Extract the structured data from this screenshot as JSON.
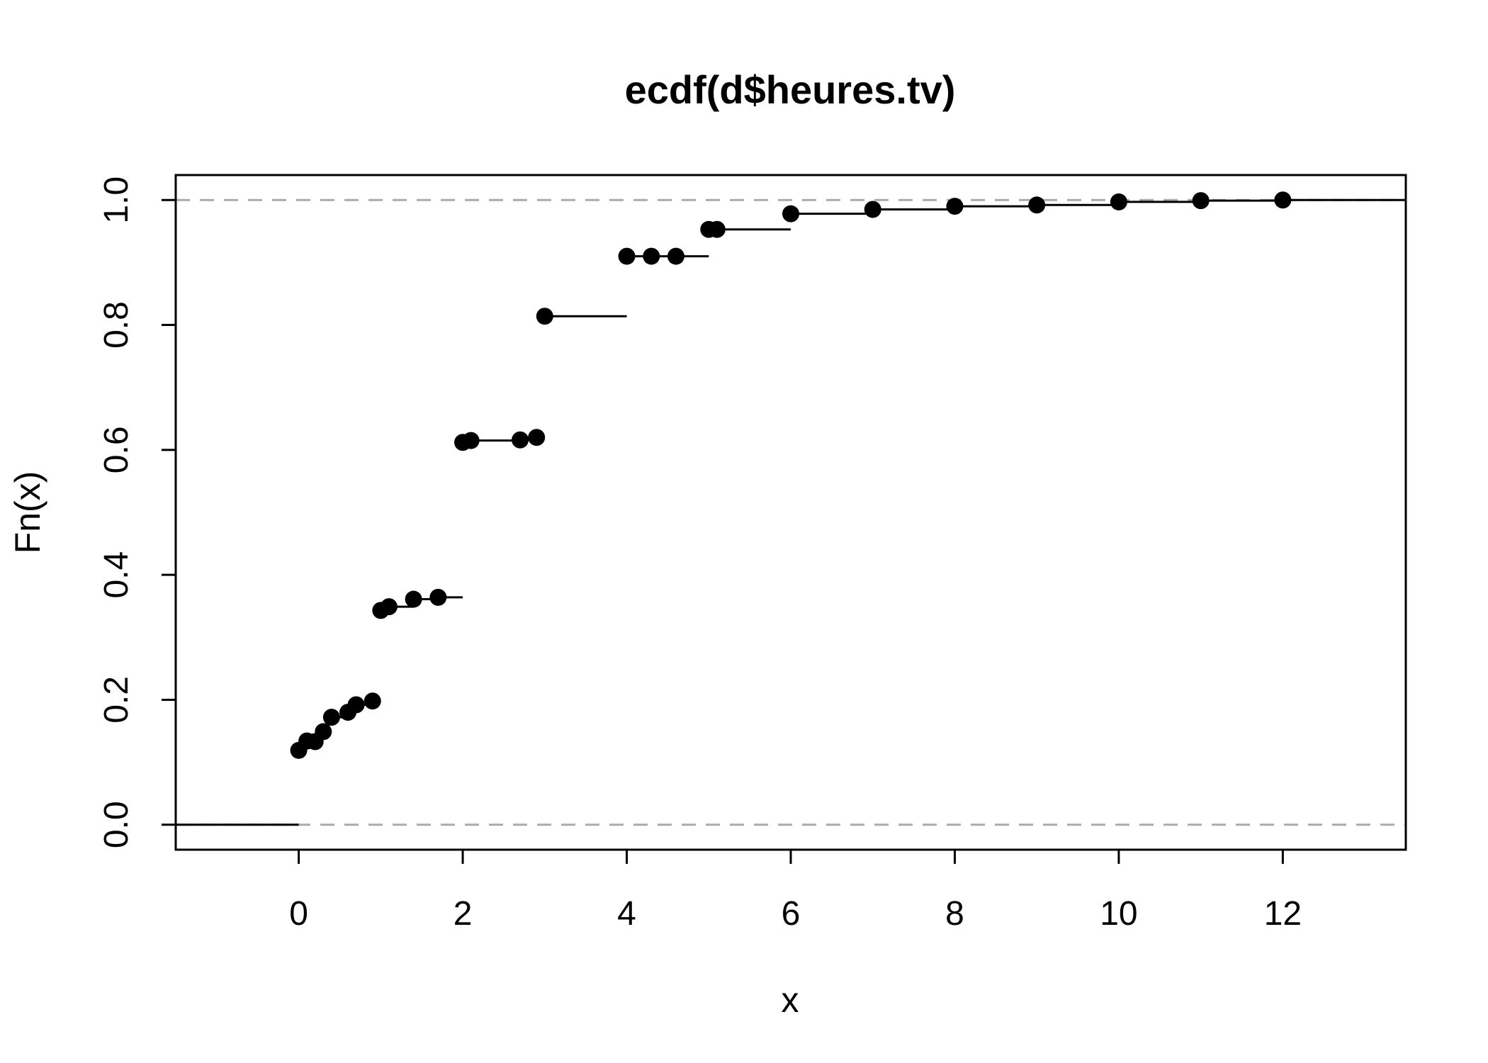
{
  "chart_data": {
    "type": "line",
    "subtype": "ecdf-step",
    "title": "ecdf(d$heures.tv)",
    "xlabel": "x",
    "ylabel": "Fn(x)",
    "xlim": [
      -1.5,
      13.5
    ],
    "ylim": [
      -0.04,
      1.04
    ],
    "xticks": [
      0,
      2,
      4,
      6,
      8,
      10,
      12
    ],
    "yticks": [
      0.0,
      0.2,
      0.4,
      0.6,
      0.8,
      1.0
    ],
    "xtick_labels": [
      "0",
      "2",
      "4",
      "6",
      "8",
      "10",
      "12"
    ],
    "ytick_labels": [
      "0.0",
      "0.2",
      "0.4",
      "0.6",
      "0.8",
      "1.0"
    ],
    "reference_lines": [
      0,
      1
    ],
    "reference_line_style": "dashed",
    "grid": false,
    "series": [
      {
        "x": [
          0,
          0.1,
          0.2,
          0.3,
          0.4,
          0.6,
          0.7,
          0.9,
          1,
          1.1,
          1.4,
          1.7,
          2,
          2.1,
          2.7,
          2.9,
          3,
          4,
          4.3,
          4.6,
          5,
          5.1,
          6,
          7,
          8,
          9,
          10,
          11,
          12
        ],
        "y": [
          0.119,
          0.134,
          0.133,
          0.149,
          0.172,
          0.18,
          0.192,
          0.198,
          0.343,
          0.349,
          0.361,
          0.364,
          0.612,
          0.615,
          0.616,
          0.62,
          0.814,
          0.91,
          0.91,
          0.91,
          0.953,
          0.953,
          0.978,
          0.985,
          0.99,
          0.992,
          0.997,
          0.999,
          1.0
        ]
      }
    ]
  },
  "colors": {
    "points": "#000000",
    "steps": "#000000",
    "reference_lines": "#aaaaaa",
    "frame": "#000000"
  }
}
